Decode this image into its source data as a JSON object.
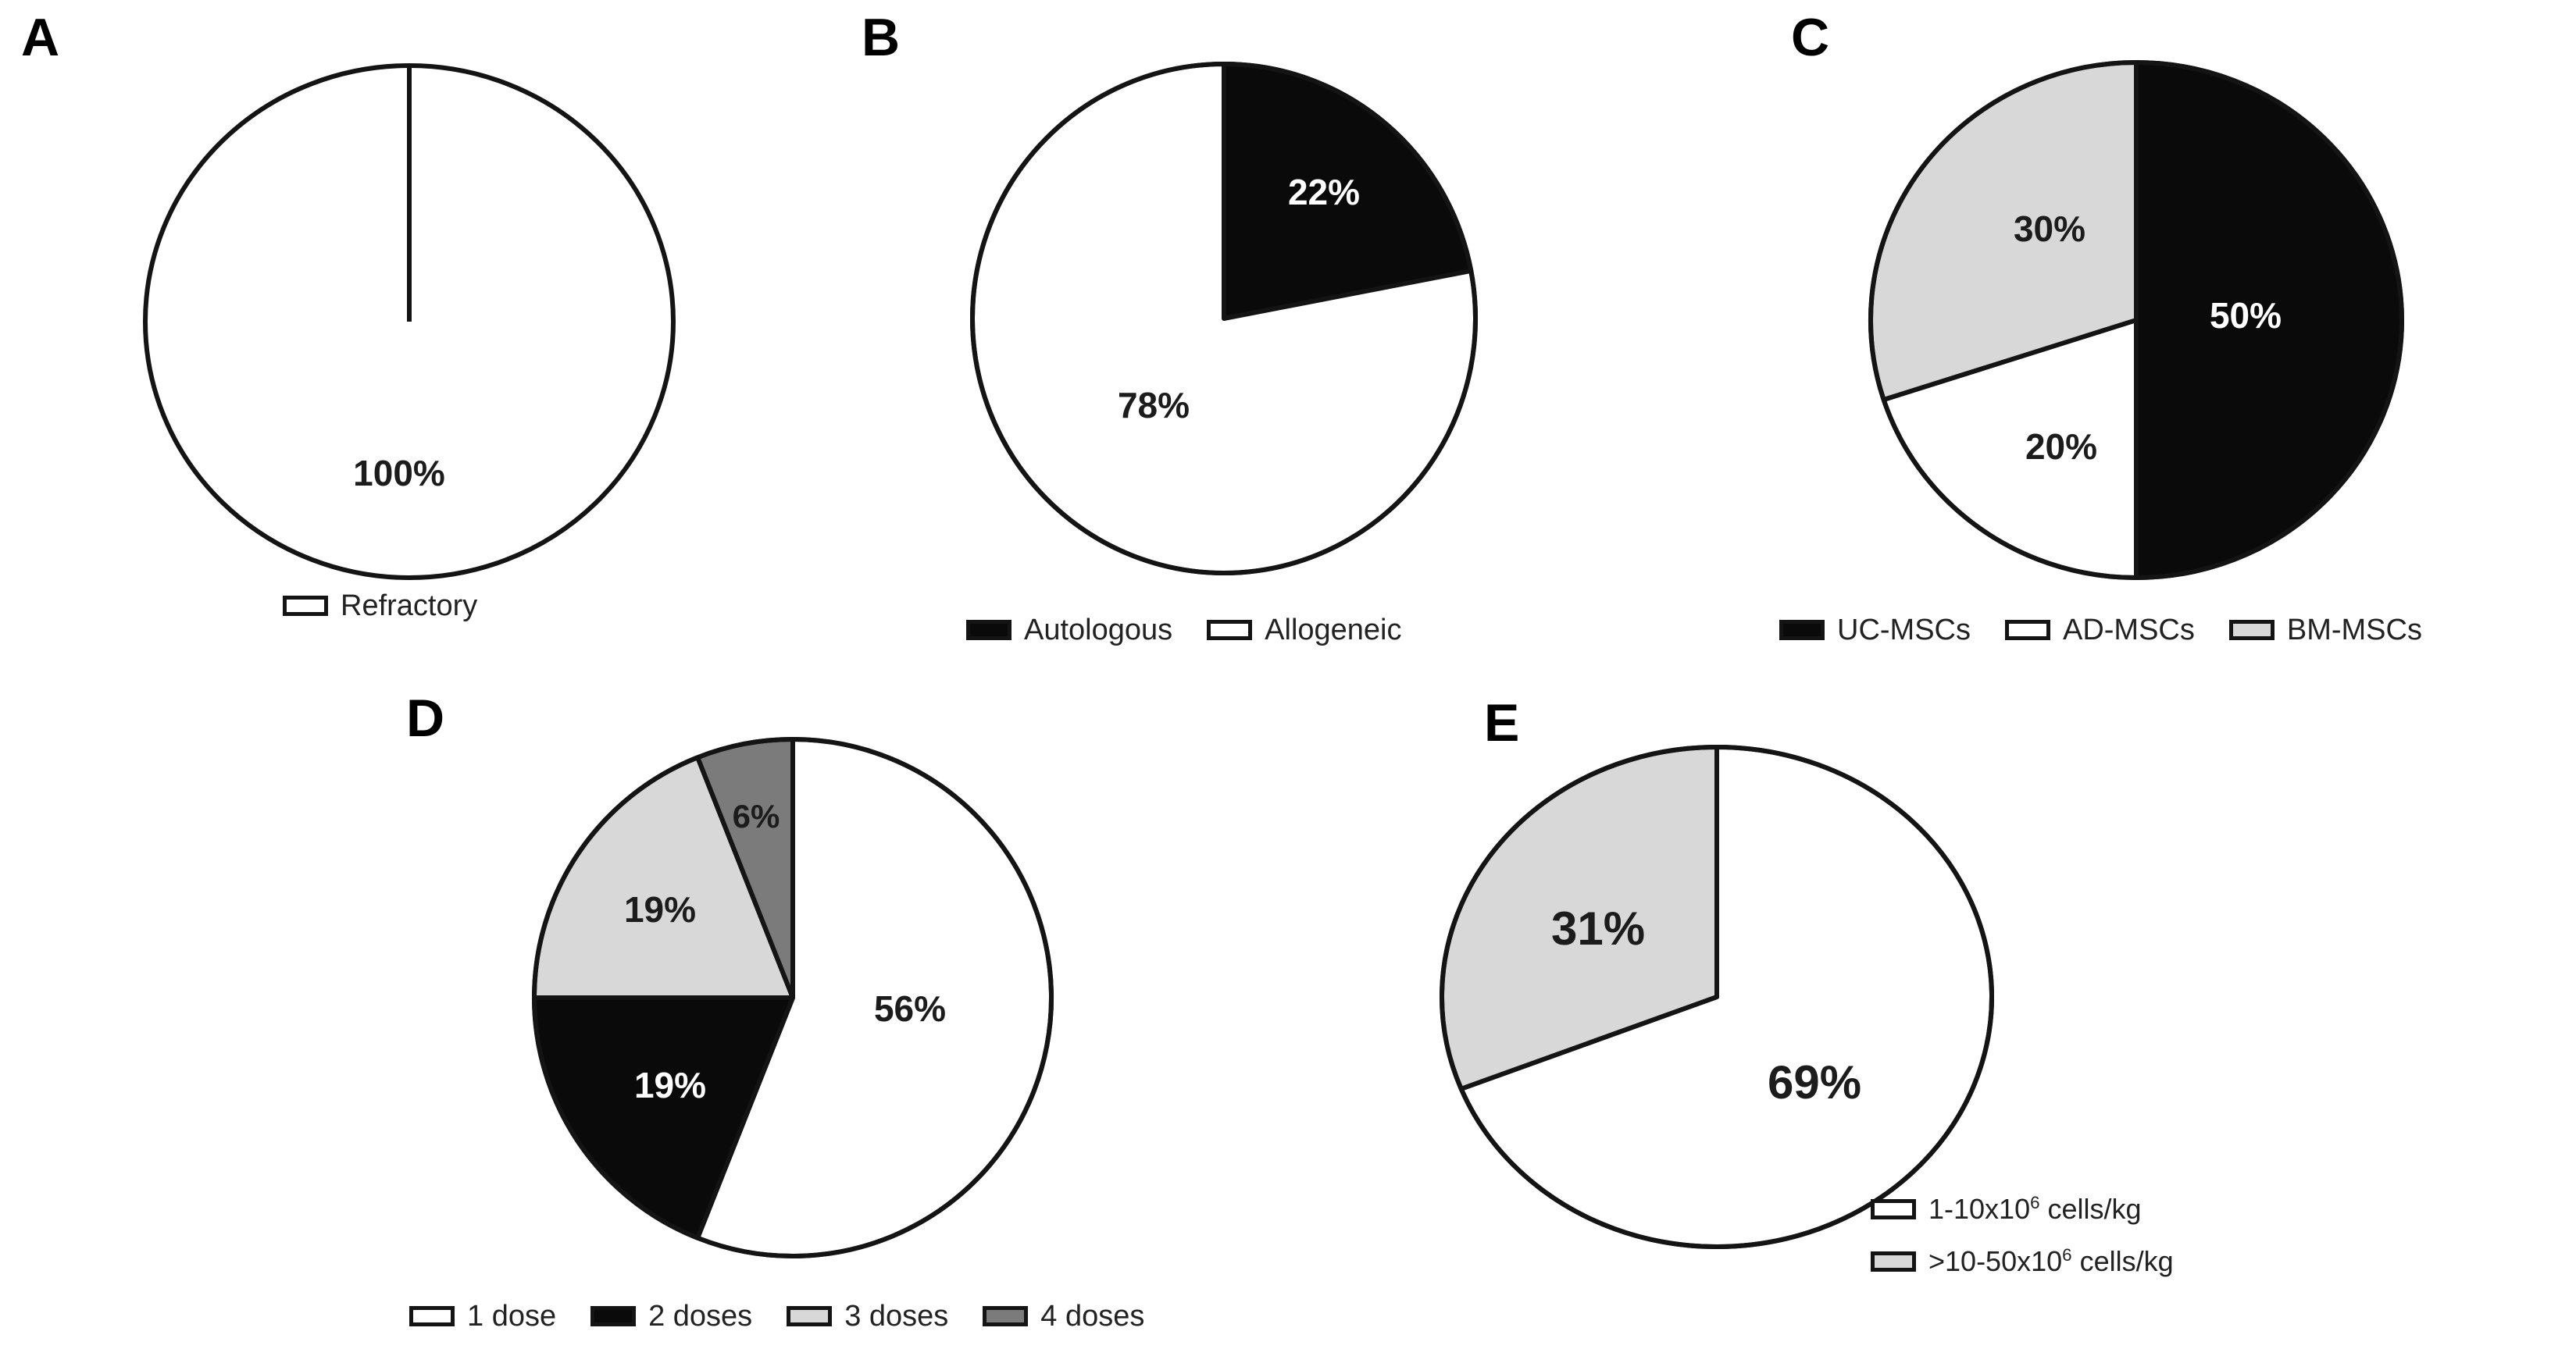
{
  "chart_data": [
    {
      "panel": "A",
      "type": "pie",
      "categories": [
        "Refractory"
      ],
      "values": [
        100
      ],
      "colors": [
        "#ffffff"
      ],
      "slice_labels": [
        "100%"
      ],
      "legend_position": "bottom"
    },
    {
      "panel": "B",
      "type": "pie",
      "categories": [
        "Autologous",
        "Allogeneic"
      ],
      "values": [
        22,
        78
      ],
      "colors": [
        "#0a0a0a",
        "#ffffff"
      ],
      "slice_labels": [
        "22%",
        "78%"
      ],
      "legend_position": "bottom"
    },
    {
      "panel": "C",
      "type": "pie",
      "categories": [
        "UC-MSCs",
        "AD-MSCs",
        "BM-MSCs"
      ],
      "values": [
        50,
        20,
        30
      ],
      "colors": [
        "#0a0a0a",
        "#ffffff",
        "#d8d8d8"
      ],
      "slice_labels": [
        "50%",
        "20%",
        "30%"
      ],
      "legend_position": "bottom"
    },
    {
      "panel": "D",
      "type": "pie",
      "categories": [
        "1 dose",
        "2 doses",
        "3 doses",
        "4 doses"
      ],
      "values": [
        56,
        19,
        19,
        6
      ],
      "colors": [
        "#ffffff",
        "#0a0a0a",
        "#d8d8d8",
        "#7b7b7b"
      ],
      "slice_labels": [
        "56%",
        "19%",
        "19%",
        "6%"
      ],
      "legend_position": "bottom"
    },
    {
      "panel": "E",
      "type": "pie",
      "categories": [
        "1-10x10⁶ cells/kg",
        ">10-50x10⁶ cells/kg"
      ],
      "values": [
        69,
        31
      ],
      "colors": [
        "#ffffff",
        "#d8d8d8"
      ],
      "slice_labels": [
        "69%",
        "31%"
      ],
      "legend_position": "right",
      "legend_parts": [
        {
          "prefix": "1-10x10",
          "sup": "6",
          "suffix": " cells/kg"
        },
        {
          "prefix": ">10-50x10",
          "sup": "6",
          "suffix": " cells/kg"
        }
      ]
    }
  ]
}
